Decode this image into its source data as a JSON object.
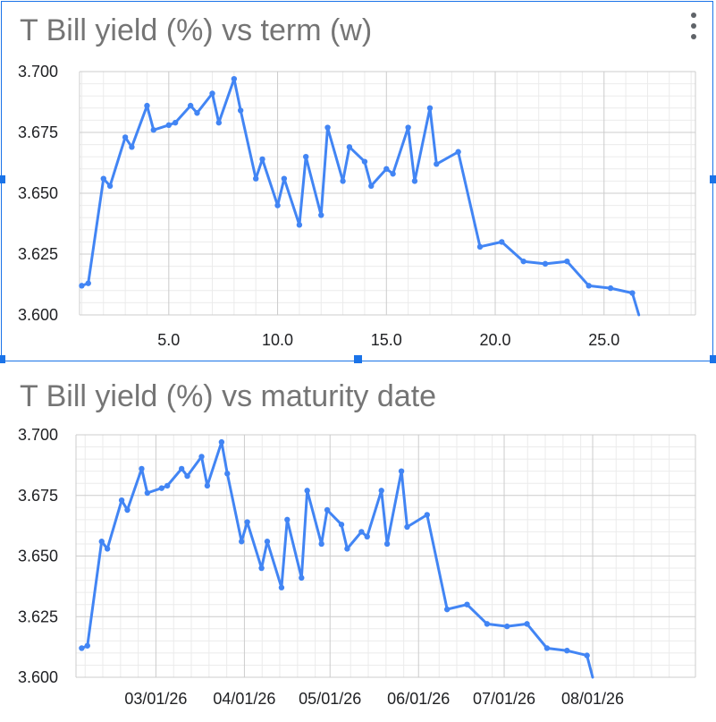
{
  "charts": [
    {
      "title": "T Bill yield (%) vs term (w)",
      "menu_icon": "more-vert-icon",
      "selected": true
    },
    {
      "title": "T Bill yield (%) vs maturity date",
      "selected": false
    }
  ],
  "colors": {
    "line": "#4285f4",
    "selection": "#1a73e8",
    "grid_major": "#cccccc",
    "grid_minor": "#ebebeb",
    "title": "#757575"
  },
  "chart_data": [
    {
      "type": "line",
      "title": "T Bill yield (%) vs term (w)",
      "xlabel": "",
      "ylabel": "",
      "xlim": [
        0.9,
        29.2
      ],
      "ylim": [
        3.6,
        3.7
      ],
      "x_ticks": [
        "5.0",
        "10.0",
        "15.0",
        "20.0",
        "25.0"
      ],
      "x_tick_values": [
        5,
        10,
        15,
        20,
        25
      ],
      "y_ticks": [
        "3.700",
        "3.675",
        "3.650",
        "3.625",
        "3.600"
      ],
      "y_tick_values": [
        3.7,
        3.675,
        3.65,
        3.625,
        3.6
      ],
      "grid": true,
      "legend": "none",
      "x": [
        1.0,
        1.3,
        2.0,
        2.3,
        3.0,
        3.3,
        4.0,
        4.3,
        5.0,
        5.3,
        6.0,
        6.3,
        7.0,
        7.3,
        8.0,
        8.3,
        9.0,
        9.3,
        10.0,
        10.3,
        11.0,
        11.3,
        12.0,
        12.3,
        13.0,
        13.3,
        14.0,
        14.3,
        15.0,
        15.3,
        16.0,
        16.3,
        17.0,
        17.3,
        18.3,
        19.3,
        20.3,
        21.3,
        22.3,
        23.3,
        24.3,
        25.3,
        26.3,
        26.6
      ],
      "series": [
        {
          "values": [
            3.612,
            3.613,
            3.656,
            3.653,
            3.673,
            3.669,
            3.686,
            3.676,
            3.678,
            3.679,
            3.686,
            3.683,
            3.691,
            3.679,
            3.697,
            3.684,
            3.656,
            3.664,
            3.645,
            3.656,
            3.637,
            3.665,
            3.641,
            3.677,
            3.655,
            3.669,
            3.663,
            3.653,
            3.66,
            3.658,
            3.677,
            3.655,
            3.685,
            3.662,
            3.667,
            3.628,
            3.63,
            3.622,
            3.621,
            3.622,
            3.612,
            3.611,
            3.609,
            3.6
          ]
        }
      ]
    },
    {
      "type": "line",
      "title": "T Bill yield (%) vs maturity date",
      "xlabel": "",
      "ylabel": "",
      "xlim": [
        "2026-02-01",
        "2026-09-06"
      ],
      "ylim": [
        3.6,
        3.7
      ],
      "x_ticks": [
        "03/01/26",
        "04/01/26",
        "05/01/26",
        "06/01/26",
        "07/01/26",
        "08/01/26"
      ],
      "x_tick_values": [
        "2026-03-01",
        "2026-04-01",
        "2026-05-01",
        "2026-06-01",
        "2026-07-01",
        "2026-08-01"
      ],
      "y_ticks": [
        "3.700",
        "3.675",
        "3.650",
        "3.625",
        "3.600"
      ],
      "y_tick_values": [
        3.7,
        3.675,
        3.65,
        3.625,
        3.6
      ],
      "grid": true,
      "legend": "none",
      "x": [
        "2026-02-03",
        "2026-02-05",
        "2026-02-10",
        "2026-02-12",
        "2026-02-17",
        "2026-02-19",
        "2026-02-24",
        "2026-02-26",
        "2026-03-03",
        "2026-03-05",
        "2026-03-10",
        "2026-03-12",
        "2026-03-17",
        "2026-03-19",
        "2026-03-24",
        "2026-03-26",
        "2026-03-31",
        "2026-04-02",
        "2026-04-07",
        "2026-04-09",
        "2026-04-14",
        "2026-04-16",
        "2026-04-21",
        "2026-04-23",
        "2026-04-28",
        "2026-04-30",
        "2026-05-05",
        "2026-05-07",
        "2026-05-12",
        "2026-05-14",
        "2026-05-19",
        "2026-05-21",
        "2026-05-26",
        "2026-05-28",
        "2026-06-04",
        "2026-06-11",
        "2026-06-18",
        "2026-06-25",
        "2026-07-02",
        "2026-07-09",
        "2026-07-16",
        "2026-07-23",
        "2026-07-30",
        "2026-08-01"
      ],
      "series": [
        {
          "values": [
            3.612,
            3.613,
            3.656,
            3.653,
            3.673,
            3.669,
            3.686,
            3.676,
            3.678,
            3.679,
            3.686,
            3.683,
            3.691,
            3.679,
            3.697,
            3.684,
            3.656,
            3.664,
            3.645,
            3.656,
            3.637,
            3.665,
            3.641,
            3.677,
            3.655,
            3.669,
            3.663,
            3.653,
            3.66,
            3.658,
            3.677,
            3.655,
            3.685,
            3.662,
            3.667,
            3.628,
            3.63,
            3.622,
            3.621,
            3.622,
            3.612,
            3.611,
            3.609,
            3.6
          ]
        }
      ]
    }
  ]
}
